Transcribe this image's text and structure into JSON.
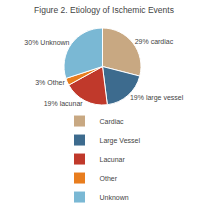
{
  "chart_data": {
    "type": "pie",
    "title": "Figure 2. Etiology of Ischemic Events",
    "categories": [
      "Cardiac",
      "Large Vessel",
      "Lacunar",
      "Other",
      "Unknown"
    ],
    "values": [
      29,
      19,
      19,
      3,
      30
    ],
    "value_labels": [
      "29% cardiac",
      "19% large vessel",
      "19% lacunar",
      "3% Other",
      "30% Unknown"
    ],
    "colors": [
      "#c8a882",
      "#3d6b8e",
      "#c0392b",
      "#e87d1e",
      "#7ab8d4"
    ],
    "data_labels": true,
    "legend": "bottom"
  }
}
